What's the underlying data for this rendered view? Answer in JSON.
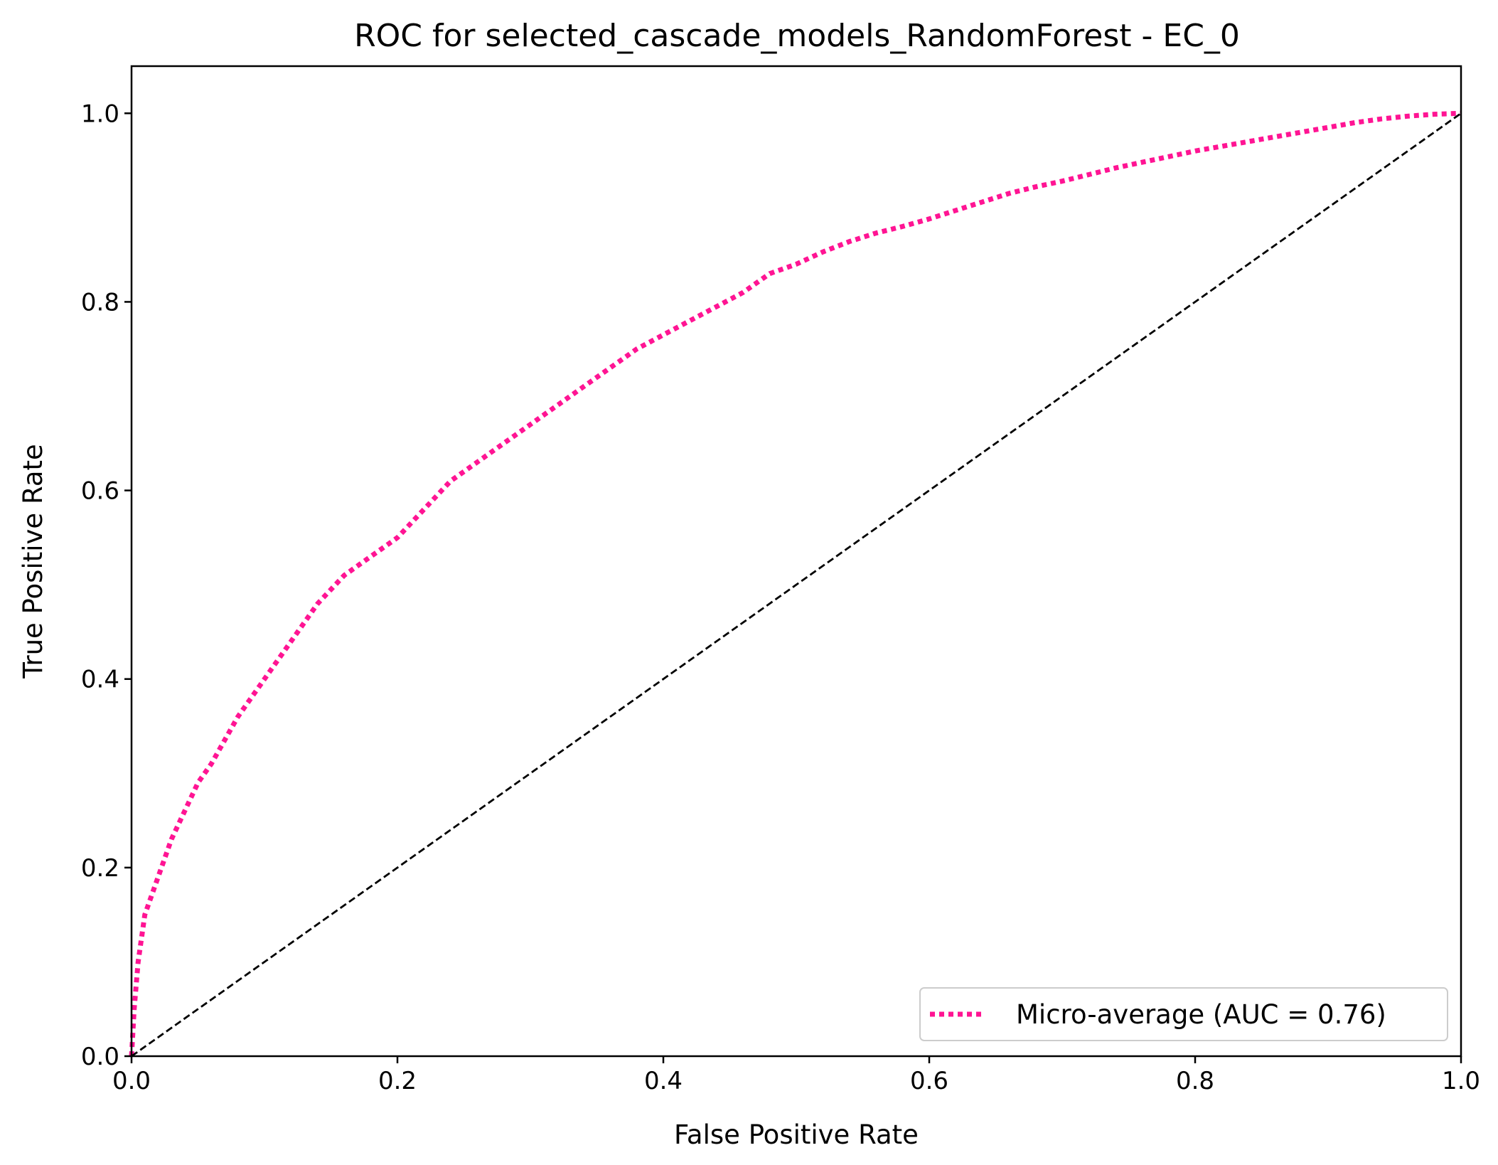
{
  "chart_data": {
    "type": "line",
    "title": "ROC for selected_cascade_models_RandomForest - EC_0",
    "xlabel": "False Positive Rate",
    "ylabel": "True Positive Rate",
    "xlim": [
      0.0,
      1.0
    ],
    "ylim": [
      0.0,
      1.05
    ],
    "xticks": [
      "0.0",
      "0.2",
      "0.4",
      "0.6",
      "0.8",
      "1.0"
    ],
    "yticks": [
      "0.0",
      "0.2",
      "0.4",
      "0.6",
      "0.8",
      "1.0"
    ],
    "grid": false,
    "legend_position": "lower-right",
    "series": [
      {
        "name": "Micro-average (AUC = 0.76)",
        "color": "#ff1493",
        "style": "dotted",
        "x": [
          0.0,
          0.002,
          0.005,
          0.01,
          0.02,
          0.03,
          0.04,
          0.05,
          0.06,
          0.08,
          0.1,
          0.12,
          0.14,
          0.16,
          0.18,
          0.2,
          0.22,
          0.24,
          0.26,
          0.28,
          0.3,
          0.32,
          0.34,
          0.36,
          0.38,
          0.4,
          0.42,
          0.44,
          0.46,
          0.48,
          0.5,
          0.52,
          0.54,
          0.56,
          0.58,
          0.6,
          0.62,
          0.64,
          0.66,
          0.68,
          0.7,
          0.72,
          0.74,
          0.76,
          0.78,
          0.8,
          0.82,
          0.84,
          0.86,
          0.88,
          0.9,
          0.92,
          0.94,
          0.96,
          0.98,
          1.0
        ],
        "y": [
          0.0,
          0.05,
          0.1,
          0.15,
          0.19,
          0.23,
          0.26,
          0.29,
          0.31,
          0.36,
          0.4,
          0.44,
          0.48,
          0.51,
          0.53,
          0.55,
          0.58,
          0.61,
          0.63,
          0.65,
          0.67,
          0.69,
          0.71,
          0.73,
          0.75,
          0.765,
          0.78,
          0.795,
          0.81,
          0.83,
          0.84,
          0.853,
          0.864,
          0.873,
          0.88,
          0.888,
          0.897,
          0.906,
          0.915,
          0.922,
          0.928,
          0.935,
          0.942,
          0.948,
          0.954,
          0.96,
          0.965,
          0.97,
          0.975,
          0.98,
          0.985,
          0.99,
          0.994,
          0.997,
          0.999,
          1.0
        ]
      },
      {
        "name": "",
        "color": "#000000",
        "style": "dashed",
        "x": [
          0.0,
          1.0
        ],
        "y": [
          0.0,
          1.0
        ]
      }
    ]
  }
}
